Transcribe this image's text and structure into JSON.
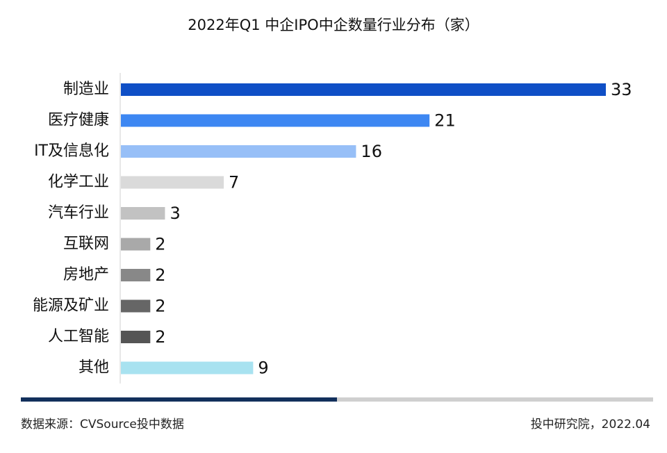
{
  "chart_data": {
    "type": "bar",
    "orientation": "horizontal",
    "title": "2022年Q1 中企IPO中企数量行业分布（家）",
    "categories": [
      "制造业",
      "医疗健康",
      "IT及信息化",
      "化学工业",
      "汽车行业",
      "互联网",
      "房地产",
      "能源及矿业",
      "人工智能",
      "其他"
    ],
    "values": [
      33,
      21,
      16,
      7,
      3,
      2,
      2,
      2,
      2,
      9
    ],
    "colors": [
      "#0f4fc6",
      "#3d87f2",
      "#97bff7",
      "#dadada",
      "#c2c2c2",
      "#a9a9a9",
      "#888888",
      "#666666",
      "#555555",
      "#a8e2f0"
    ],
    "xlim": [
      0,
      33
    ],
    "grid": false,
    "legend": "none"
  },
  "footer": {
    "source": "数据来源：CVSource投中数据",
    "credit": "投中研究院，2022.04",
    "accent_color": "#12305c",
    "accent_fraction": 0.5
  }
}
